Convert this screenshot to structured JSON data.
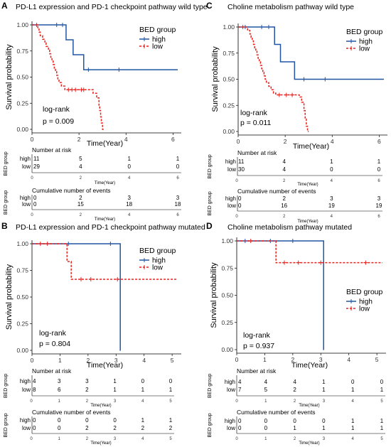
{
  "colors": {
    "high": "#2155a3",
    "low": "#e8211c",
    "axis": "#000000",
    "grid_text": "#333333"
  },
  "panels": [
    {
      "id": "A",
      "letter": "A",
      "title": "PD-L1 expression and PD-1 checkpoint pathway wild type",
      "pvalue_line1": "log-rank",
      "pvalue_line2": "p = 0.009",
      "xlabel": "Time(Year)",
      "ylabel": "Survival probability",
      "xlim": [
        0,
        6.2
      ],
      "xticks": [
        "0",
        "2",
        "4",
        "6"
      ],
      "ylim": [
        0,
        1
      ],
      "yticks": [
        "0.00",
        "0.25",
        "0.50",
        "0.75",
        "1.00"
      ],
      "legend": {
        "title": "BED group",
        "items": [
          "high",
          "low"
        ],
        "placement": "top-right"
      },
      "risk_title": "Number at risk",
      "risk_rows": [
        "high",
        "low"
      ],
      "risk_values": [
        [
          "11",
          "5",
          "1",
          "1"
        ],
        [
          "29",
          "4",
          "0",
          "0"
        ]
      ],
      "events_title": "Cumulative number of events",
      "events_values": [
        [
          "0",
          "2",
          "3",
          "3"
        ],
        [
          "0",
          "15",
          "18",
          "18"
        ]
      ],
      "table_xticks": [
        "0",
        "2",
        "4",
        "6"
      ],
      "table_xlabel": "Time(Year)",
      "table_ylabel": "BED group",
      "chart_data": {
        "type": "line",
        "series": [
          {
            "name": "high",
            "steps": [
              [
                0,
                1
              ],
              [
                1.45,
                0.857
              ],
              [
                1.75,
                0.714
              ],
              [
                2.2,
                0.571
              ],
              [
                6.2,
                0.571
              ]
            ],
            "censor": [
              [
                1.05,
                1
              ],
              [
                1.3,
                1
              ],
              [
                2.4,
                0.571
              ],
              [
                3.7,
                0.571
              ]
            ]
          },
          {
            "name": "low",
            "steps": [
              [
                0,
                1
              ],
              [
                0.25,
                0.966
              ],
              [
                0.3,
                0.931
              ],
              [
                0.35,
                0.897
              ],
              [
                0.45,
                0.862
              ],
              [
                0.55,
                0.828
              ],
              [
                0.6,
                0.793
              ],
              [
                0.7,
                0.759
              ],
              [
                0.75,
                0.724
              ],
              [
                0.8,
                0.69
              ],
              [
                0.85,
                0.655
              ],
              [
                0.9,
                0.621
              ],
              [
                0.95,
                0.586
              ],
              [
                1.0,
                0.552
              ],
              [
                1.05,
                0.517
              ],
              [
                1.1,
                0.483
              ],
              [
                1.15,
                0.448
              ],
              [
                1.25,
                0.414
              ],
              [
                1.4,
                0.379
              ],
              [
                2.6,
                0.345
              ],
              [
                2.75,
                0.301
              ],
              [
                2.85,
                0.232
              ],
              [
                2.88,
                0.18
              ],
              [
                2.92,
                0.12
              ],
              [
                2.95,
                0.06
              ],
              [
                3.0,
                0
              ],
              [
                3.05,
                0
              ]
            ],
            "censor": [
              [
                0.2,
                1
              ],
              [
                1.55,
                0.379
              ],
              [
                1.7,
                0.379
              ],
              [
                1.85,
                0.379
              ],
              [
                2.1,
                0.379
              ],
              [
                2.2,
                0.379
              ]
            ]
          }
        ]
      }
    },
    {
      "id": "C",
      "letter": "C",
      "title": "Choline metabolism pathway wild type",
      "pvalue_line1": "log-rank",
      "pvalue_line2": "p = 0.011",
      "xlabel": "Time(Year)",
      "ylabel": "Survival probability",
      "xlim": [
        0,
        6.2
      ],
      "xticks": [
        "0",
        "2",
        "4",
        "6"
      ],
      "ylim": [
        0,
        1
      ],
      "yticks": [
        "0.00",
        "0.25",
        "0.50",
        "0.75",
        "1.00"
      ],
      "legend": {
        "title": "BED group",
        "items": [
          "high",
          "low"
        ],
        "placement": "top-right"
      },
      "risk_title": "Number at risk",
      "risk_rows": [
        "high",
        "low"
      ],
      "risk_values": [
        [
          "11",
          "4",
          "1",
          "1"
        ],
        [
          "30",
          "4",
          "0",
          "0"
        ]
      ],
      "events_title": "Cumulative number of events",
      "events_values": [
        [
          "0",
          "2",
          "3",
          "3"
        ],
        [
          "0",
          "16",
          "19",
          "19"
        ]
      ],
      "table_xticks": [
        "0",
        "2",
        "4",
        "6"
      ],
      "table_xlabel": "Time(Year)",
      "table_ylabel": "BED group",
      "chart_data": {
        "type": "line",
        "series": [
          {
            "name": "high",
            "steps": [
              [
                0,
                1
              ],
              [
                1.55,
                0.833
              ],
              [
                1.8,
                0.667
              ],
              [
                2.4,
                0.5
              ],
              [
                6.2,
                0.5
              ]
            ],
            "censor": [
              [
                0.3,
                1
              ],
              [
                1.0,
                1
              ],
              [
                1.3,
                1
              ],
              [
                2.8,
                0.5
              ],
              [
                3.7,
                0.5
              ]
            ]
          },
          {
            "name": "low",
            "steps": [
              [
                0,
                1
              ],
              [
                0.4,
                0.967
              ],
              [
                0.5,
                0.933
              ],
              [
                0.55,
                0.9
              ],
              [
                0.6,
                0.867
              ],
              [
                0.65,
                0.833
              ],
              [
                0.7,
                0.8
              ],
              [
                0.75,
                0.767
              ],
              [
                0.8,
                0.733
              ],
              [
                0.85,
                0.7
              ],
              [
                0.9,
                0.667
              ],
              [
                0.95,
                0.633
              ],
              [
                1.0,
                0.6
              ],
              [
                1.05,
                0.567
              ],
              [
                1.1,
                0.533
              ],
              [
                1.15,
                0.5
              ],
              [
                1.2,
                0.467
              ],
              [
                1.3,
                0.433
              ],
              [
                1.4,
                0.4
              ],
              [
                1.5,
                0.367
              ],
              [
                1.6,
                0.35
              ],
              [
                2.6,
                0.33
              ],
              [
                2.7,
                0.28
              ],
              [
                2.8,
                0.2
              ],
              [
                2.85,
                0.12
              ],
              [
                2.9,
                0.05
              ],
              [
                2.95,
                0
              ],
              [
                3.0,
                0
              ]
            ],
            "censor": [
              [
                0.2,
                1
              ],
              [
                1.75,
                0.35
              ],
              [
                2.05,
                0.35
              ],
              [
                2.3,
                0.35
              ]
            ]
          }
        ]
      }
    },
    {
      "id": "B",
      "letter": "B",
      "title": "PD-L1 expression and PD-1 checkpoint pathway mutated",
      "pvalue_line1": "log-rank",
      "pvalue_line2": "p = 0.804",
      "xlabel": "Time(Year)",
      "ylabel": "Survival probability",
      "xlim": [
        0,
        5.2
      ],
      "xticks": [
        "0",
        "1",
        "2",
        "3",
        "4",
        "5"
      ],
      "ylim": [
        0,
        1
      ],
      "yticks": [
        "0.00",
        "0.25",
        "0.50",
        "0.75",
        "1.00"
      ],
      "legend": {
        "title": "BED group",
        "items": [
          "high",
          "low"
        ],
        "placement": "top-right"
      },
      "risk_title": "Number at risk",
      "risk_rows": [
        "high",
        "low"
      ],
      "risk_values": [
        [
          "4",
          "3",
          "3",
          "1",
          "0",
          "0"
        ],
        [
          "8",
          "6",
          "2",
          "1",
          "1",
          "1"
        ]
      ],
      "events_title": "Cumulative number of events",
      "events_values": [
        [
          "0",
          "0",
          "0",
          "0",
          "1",
          "1"
        ],
        [
          "0",
          "0",
          "2",
          "2",
          "2",
          "2"
        ]
      ],
      "table_xticks": [
        "0",
        "1",
        "2",
        "3",
        "4",
        "5"
      ],
      "table_xlabel": "Time(Year)",
      "table_ylabel": "BED group",
      "chart_data": {
        "type": "line",
        "series": [
          {
            "name": "high",
            "steps": [
              [
                0,
                1
              ],
              [
                3.15,
                1
              ],
              [
                3.15,
                0
              ],
              [
                3.16,
                0
              ]
            ],
            "censor": [
              [
                1.3,
                1
              ],
              [
                2.8,
                1
              ]
            ]
          },
          {
            "name": "low",
            "steps": [
              [
                0,
                1
              ],
              [
                1.25,
                0.833
              ],
              [
                1.4,
                0.667
              ],
              [
                5.2,
                0.667
              ]
            ],
            "censor": [
              [
                0.3,
                1
              ],
              [
                0.55,
                1
              ],
              [
                1.75,
                0.667
              ],
              [
                2.1,
                0.667
              ],
              [
                3.05,
                0.667
              ]
            ]
          }
        ]
      }
    },
    {
      "id": "D",
      "letter": "D",
      "title": "Choline metabolism pathway mutated",
      "pvalue_line1": "log-rank",
      "pvalue_line2": "p = 0.937",
      "xlabel": "Time(Year)",
      "ylabel": "Survival probability",
      "xlim": [
        0,
        5.2
      ],
      "xticks": [
        "0",
        "1",
        "2",
        "3",
        "4",
        "5"
      ],
      "ylim": [
        0,
        1
      ],
      "yticks": [
        "0.00",
        "0.25",
        "0.50",
        "0.75",
        "1.00"
      ],
      "legend": {
        "title": "BED group",
        "items": [
          "high",
          "low"
        ],
        "placement": "right"
      },
      "risk_title": "Number at risk",
      "risk_rows": [
        "high",
        "low"
      ],
      "risk_values": [
        [
          "4",
          "4",
          "4",
          "1",
          "0",
          "0"
        ],
        [
          "7",
          "5",
          "2",
          "1",
          "1",
          "1"
        ]
      ],
      "events_title": "Cumulative number of events",
      "events_values": [
        [
          "0",
          "0",
          "0",
          "0",
          "1",
          "1"
        ],
        [
          "0",
          "0",
          "1",
          "1",
          "1",
          "1"
        ]
      ],
      "table_xticks": [
        "0",
        "1",
        "2",
        "3",
        "4",
        "5"
      ],
      "table_xlabel": "Time(Year)",
      "table_ylabel": "BED group",
      "chart_data": {
        "type": "line",
        "series": [
          {
            "name": "high",
            "steps": [
              [
                0,
                1
              ],
              [
                3.1,
                1
              ],
              [
                3.1,
                0
              ],
              [
                3.11,
                0
              ]
            ],
            "censor": [
              [
                0.3,
                1
              ],
              [
                1.2,
                1
              ],
              [
                2.0,
                1
              ]
            ]
          },
          {
            "name": "low",
            "steps": [
              [
                0,
                1
              ],
              [
                1.4,
                0.8
              ],
              [
                5.2,
                0.8
              ]
            ],
            "censor": [
              [
                0.5,
                1
              ],
              [
                1.7,
                0.8
              ],
              [
                2.2,
                0.8
              ],
              [
                3.0,
                0.8
              ],
              [
                4.6,
                0.8
              ]
            ]
          }
        ]
      }
    }
  ]
}
